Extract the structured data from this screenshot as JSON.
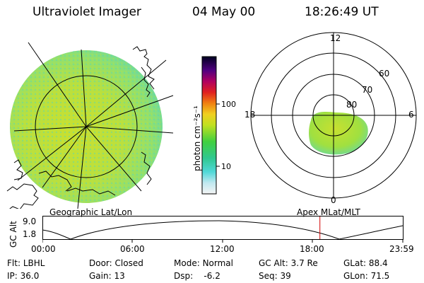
{
  "header": {
    "instrument": "Ultraviolet Imager",
    "date": "04 May 00",
    "time": "18:26:49 UT"
  },
  "colorbar": {
    "unit_label": "photon cm⁻²s⁻¹",
    "tick_100": "100",
    "tick_10": "10"
  },
  "polar": {
    "mlt_12": "12",
    "mlt_18": "18",
    "mlt_6": "6",
    "mlt_0": "0",
    "lat_60": "60",
    "lat_70": "70",
    "lat_80": "80"
  },
  "orbit": {
    "left_title": "Geographic Lat/Lon",
    "right_title": "Apex MLat/MLT",
    "axis_label": "GC Alt",
    "alt_max": "9.0",
    "alt_min": "1.8",
    "times": [
      "00:00",
      "06:00",
      "12:00",
      "18:00",
      "23:59"
    ],
    "current_fraction": 0.77,
    "marker_color": "#d00000"
  },
  "status": {
    "filter_label": "Flt:",
    "filter_value": "LBHL",
    "ip_label": "IP:",
    "ip_value": "36.0",
    "door_label": "Door:",
    "door_value": "Closed",
    "gain_label": "Gain:",
    "gain_value": "13",
    "mode_label": "Mode:",
    "mode_value": "Normal",
    "dsp_label": "Dsp:",
    "dsp_value": "-6.2",
    "gcalt_label": "GC Alt:",
    "gcalt_value": "3.7 Re",
    "seq_label": "Seq:",
    "seq_value": "39",
    "glat_label": "GLat:",
    "glat_value": "88.4",
    "glon_label": "GLon:",
    "glon_value": "71.5"
  }
}
